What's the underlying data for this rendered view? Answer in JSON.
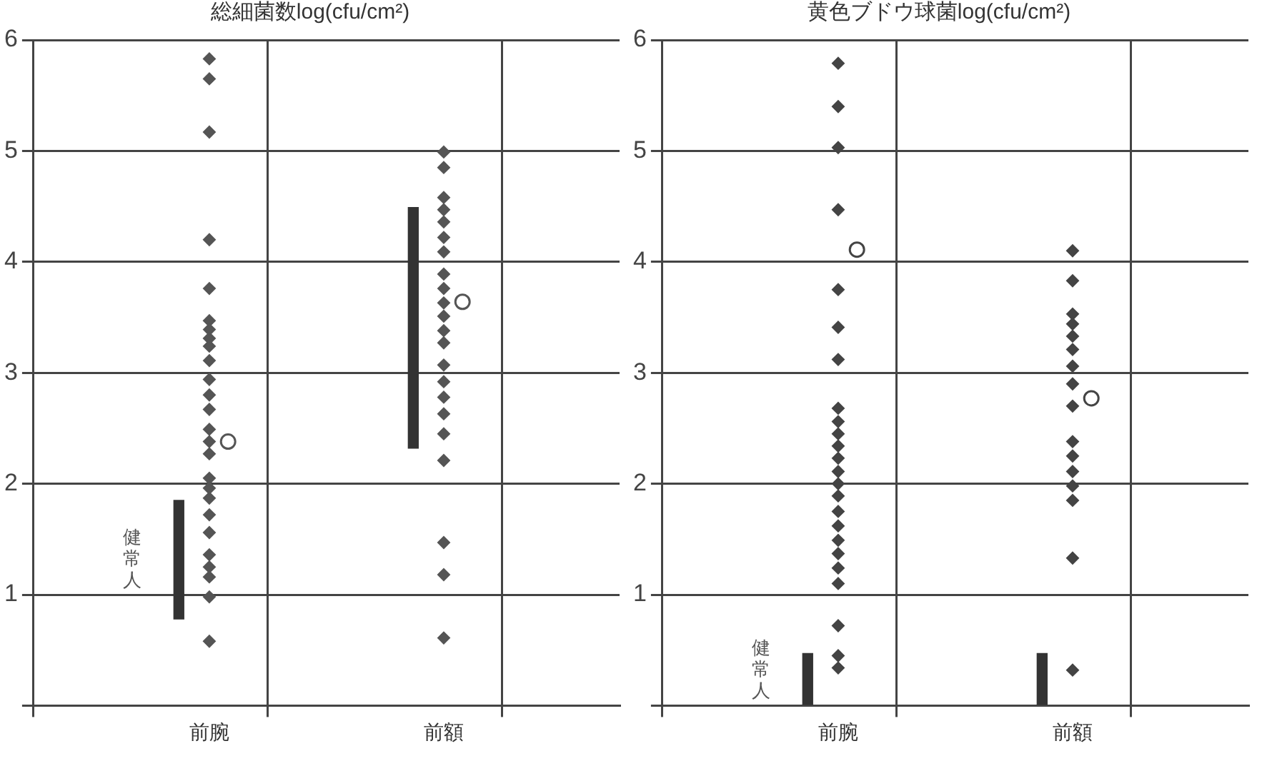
{
  "chart_data": [
    {
      "type": "scatter",
      "title": "総細菌数log(cfu/cm²)",
      "categories": [
        "前腕",
        "前額"
      ],
      "ylim": [
        0,
        6
      ],
      "yticks": [
        {
          "value": 0,
          "label": null
        },
        1,
        2,
        3,
        4,
        5,
        6
      ],
      "grid": true,
      "annotations": [
        "健常人"
      ],
      "series": [
        {
          "type": "bar",
          "color": "#333333",
          "values": [
            1.07,
            2.17
          ],
          "base": [
            0.78,
            2.32
          ]
        },
        {
          "marker": "diamond",
          "color": "#555555",
          "x": [
            "前腕",
            "前腕",
            "前腕",
            "前腕",
            "前腕",
            "前腕",
            "前腕",
            "前腕",
            "前腕",
            "前腕",
            "前腕",
            "前腕",
            "前腕",
            "前腕",
            "前腕",
            "前腕",
            "前腕",
            "前腕",
            "前腕",
            "前腕",
            "前腕",
            "前腕",
            "前腕",
            "前腕",
            "前腕",
            "前腕",
            "前額",
            "前額",
            "前額",
            "前額",
            "前額",
            "前額",
            "前額",
            "前額",
            "前額",
            "前額",
            "前額",
            "前額",
            "前額",
            "前額",
            "前額",
            "前額",
            "前額",
            "前額",
            "前額",
            "前額",
            "前額",
            "前額"
          ],
          "values": [
            5.83,
            5.65,
            5.17,
            4.2,
            3.76,
            3.47,
            3.39,
            3.31,
            3.24,
            3.11,
            2.94,
            2.8,
            2.67,
            2.49,
            2.38,
            2.27,
            2.05,
            1.96,
            1.87,
            1.72,
            1.56,
            1.36,
            1.25,
            1.16,
            0.98,
            0.58,
            4.99,
            4.85,
            4.58,
            4.47,
            4.36,
            4.22,
            4.09,
            3.89,
            3.76,
            3.63,
            3.51,
            3.38,
            3.27,
            3.07,
            2.92,
            2.78,
            2.63,
            2.45,
            2.21,
            1.47,
            1.18,
            0.61
          ]
        },
        {
          "marker": "circle",
          "color": "#555555",
          "x": [
            "前腕",
            "前額"
          ],
          "values": [
            2.38,
            3.64
          ]
        }
      ]
    },
    {
      "type": "scatter",
      "title": "黄色ブドウ球菌log(cfu/cm²)",
      "categories": [
        "前腕",
        "前額"
      ],
      "ylim": [
        0,
        6
      ],
      "yticks": [
        {
          "value": 0,
          "label": null
        },
        1,
        2,
        3,
        4,
        5,
        6
      ],
      "grid": true,
      "annotations": [
        "健常人"
      ],
      "series": [
        {
          "type": "bar",
          "color": "#333333",
          "values": [
            0.47,
            0.47
          ],
          "base": [
            0,
            0
          ]
        },
        {
          "marker": "diamond",
          "color": "#444444",
          "x": [
            "前腕",
            "前腕",
            "前腕",
            "前腕",
            "前腕",
            "前腕",
            "前腕",
            "前腕",
            "前腕",
            "前腕",
            "前腕",
            "前腕",
            "前腕",
            "前腕",
            "前腕",
            "前腕",
            "前腕",
            "前腕",
            "前腕",
            "前腕",
            "前腕",
            "前腕",
            "前腕",
            "前腕",
            "前額",
            "前額",
            "前額",
            "前額",
            "前額",
            "前額",
            "前額",
            "前額",
            "前額",
            "前額",
            "前額",
            "前額",
            "前額",
            "前額",
            "前額",
            "前額"
          ],
          "values": [
            5.79,
            5.4,
            5.03,
            4.47,
            3.75,
            3.41,
            3.12,
            2.68,
            2.56,
            2.45,
            2.34,
            2.23,
            2.11,
            2.0,
            1.89,
            1.75,
            1.62,
            1.49,
            1.37,
            1.24,
            1.1,
            0.72,
            0.45,
            0.34,
            4.1,
            3.83,
            3.53,
            3.44,
            3.33,
            3.21,
            3.06,
            2.9,
            2.7,
            2.38,
            2.25,
            2.11,
            1.98,
            1.85,
            1.33,
            0.32
          ]
        },
        {
          "marker": "circle",
          "color": "#444444",
          "x": [
            "前腕",
            "前額"
          ],
          "values": [
            4.11,
            2.77
          ]
        }
      ]
    }
  ]
}
